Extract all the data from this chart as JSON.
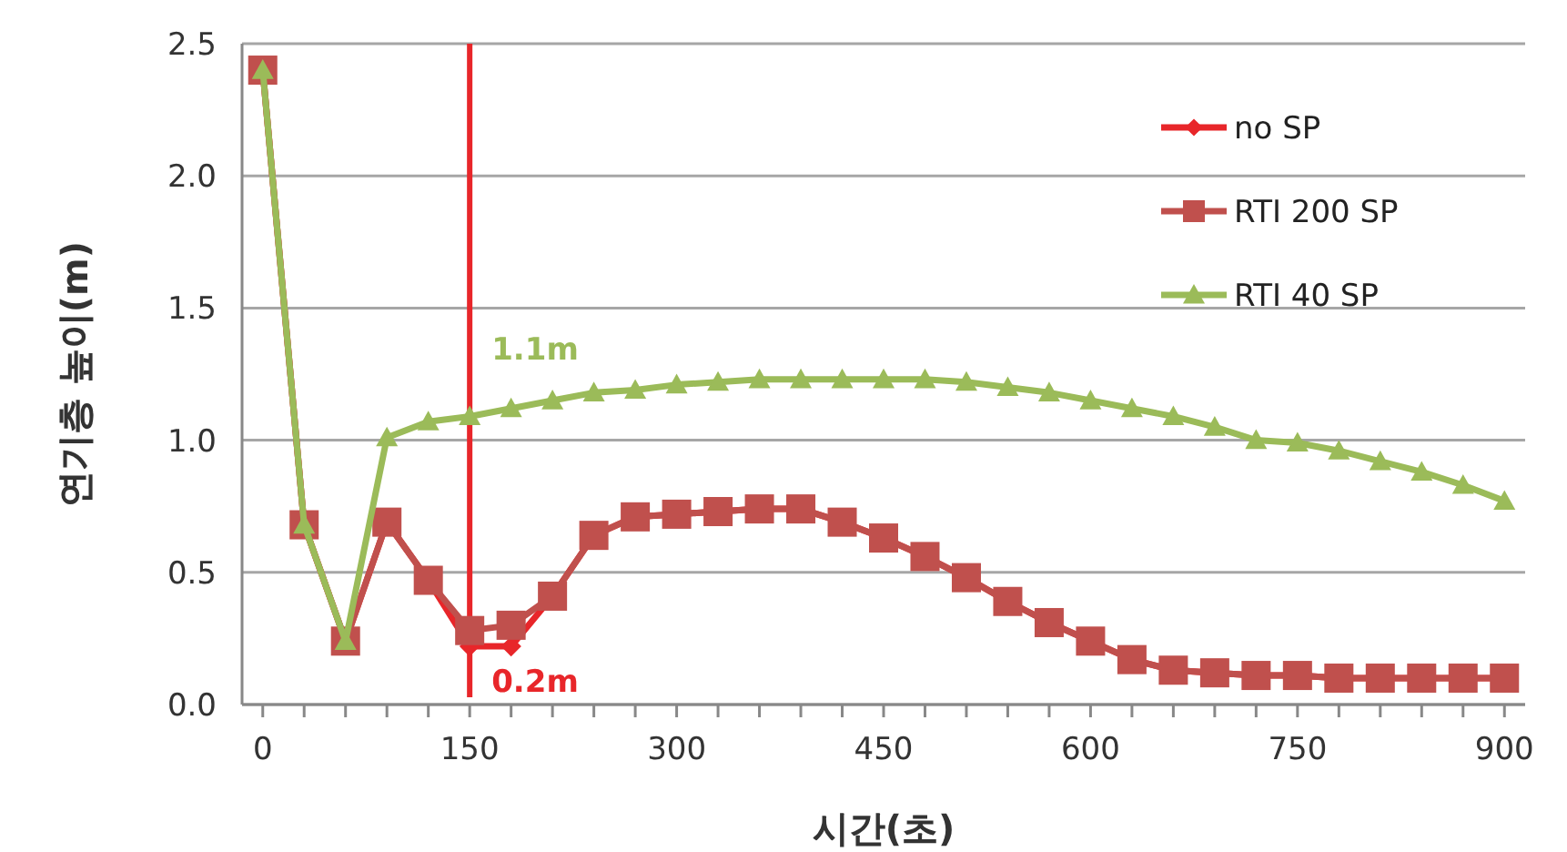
{
  "chart_data": {
    "type": "line",
    "xlabel": "시간(초)",
    "ylabel": "연기층 높이(m)",
    "x": [
      0,
      30,
      60,
      90,
      120,
      150,
      180,
      210,
      240,
      270,
      300,
      330,
      360,
      390,
      420,
      450,
      480,
      510,
      540,
      570,
      600,
      630,
      660,
      690,
      720,
      750,
      780,
      810,
      840,
      870,
      900
    ],
    "series": [
      {
        "name": "no SP",
        "color": "#e8262a",
        "marker": "diamond",
        "values": [
          2.4,
          0.68,
          0.24,
          0.69,
          0.47,
          0.22,
          0.22,
          0.41,
          0.64,
          0.71,
          0.72,
          0.73,
          0.74,
          0.74,
          0.69,
          0.63,
          0.56,
          0.48,
          0.39,
          0.31,
          0.24,
          0.17,
          0.13,
          0.12,
          0.11,
          0.11,
          0.1,
          0.1,
          0.1,
          0.1,
          0.1
        ]
      },
      {
        "name": "RTI 200 SP",
        "color": "#c0504d",
        "marker": "square",
        "values": [
          2.4,
          0.68,
          0.24,
          0.69,
          0.47,
          0.28,
          0.3,
          0.41,
          0.64,
          0.71,
          0.72,
          0.73,
          0.74,
          0.74,
          0.69,
          0.63,
          0.56,
          0.48,
          0.39,
          0.31,
          0.24,
          0.17,
          0.13,
          0.12,
          0.11,
          0.11,
          0.1,
          0.1,
          0.1,
          0.1,
          0.1
        ]
      },
      {
        "name": "RTI 40 SP",
        "color": "#9bbb59",
        "marker": "triangle",
        "values": [
          2.4,
          0.68,
          0.24,
          1.01,
          1.07,
          1.09,
          1.12,
          1.15,
          1.18,
          1.19,
          1.21,
          1.22,
          1.23,
          1.23,
          1.23,
          1.23,
          1.23,
          1.22,
          1.2,
          1.18,
          1.15,
          1.12,
          1.09,
          1.05,
          1.0,
          0.99,
          0.96,
          0.92,
          0.88,
          0.83,
          0.77
        ]
      }
    ],
    "xlim": [
      -15,
      915
    ],
    "xticks": [
      0,
      {
        "value": 30,
        "label": null
      },
      {
        "value": 60,
        "label": null
      },
      {
        "value": 90,
        "label": null
      },
      {
        "value": 120,
        "label": null
      },
      150,
      {
        "value": 180,
        "label": null
      },
      {
        "value": 210,
        "label": null
      },
      {
        "value": 240,
        "label": null
      },
      {
        "value": 270,
        "label": null
      },
      300,
      {
        "value": 330,
        "label": null
      },
      {
        "value": 360,
        "label": null
      },
      {
        "value": 390,
        "label": null
      },
      {
        "value": 420,
        "label": null
      },
      450,
      {
        "value": 480,
        "label": null
      },
      {
        "value": 510,
        "label": null
      },
      {
        "value": 540,
        "label": null
      },
      {
        "value": 570,
        "label": null
      },
      600,
      {
        "value": 630,
        "label": null
      },
      {
        "value": 660,
        "label": null
      },
      {
        "value": 690,
        "label": null
      },
      {
        "value": 720,
        "label": null
      },
      750,
      {
        "value": 780,
        "label": null
      },
      {
        "value": 810,
        "label": null
      },
      {
        "value": 840,
        "label": null
      },
      {
        "value": 870,
        "label": null
      },
      900
    ],
    "ylim": [
      0,
      2.5
    ],
    "yticks": [
      {
        "value": 0,
        "label": "0.0"
      },
      {
        "value": 0.5,
        "label": "0.5"
      },
      {
        "value": 1,
        "label": "1.0"
      },
      {
        "value": 1.5,
        "label": "1.5"
      },
      {
        "value": 2,
        "label": "2.0"
      },
      {
        "value": 2.5,
        "label": "2.5"
      }
    ],
    "grid": "y",
    "legend": "top right",
    "ref_lines": [
      {
        "axis": "x",
        "value": 150,
        "color": "#e8262a"
      }
    ],
    "annotations": [
      {
        "text": "1.1m",
        "x": 150,
        "y": 1.1
      },
      {
        "text": "0.2m",
        "x": 150,
        "y": 0.2
      }
    ]
  }
}
